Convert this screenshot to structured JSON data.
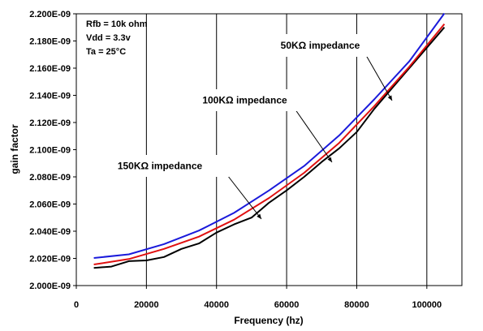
{
  "chart_data": {
    "type": "line",
    "xlabel": "Frequency (hz)",
    "ylabel": "gain factor",
    "xlim": [
      0,
      110000
    ],
    "ylim": [
      2e-09,
      2.2e-09
    ],
    "x_ticks": [
      "0",
      "20000",
      "40000",
      "60000",
      "80000",
      "100000"
    ],
    "y_ticks": [
      "2.000E-09",
      "2.020E-09",
      "2.040E-09",
      "2.060E-09",
      "2.080E-09",
      "2.100E-09",
      "2.120E-09",
      "2.140E-09",
      "2.160E-09",
      "2.180E-09",
      "2.200E-09"
    ],
    "grid": "vertical",
    "conditions": [
      "Rfb = 10k ohm",
      "Vdd = 3.3v",
      "Ta = 25°C"
    ],
    "series": [
      {
        "name": "50KΩ impedance",
        "color": "#1a1adb",
        "x": [
          5000,
          15000,
          25000,
          35000,
          45000,
          55000,
          65000,
          75000,
          85000,
          95000,
          105000
        ],
        "y": [
          2.0203e-09,
          2.023e-09,
          2.0305e-09,
          2.0405e-09,
          2.0535e-09,
          2.07e-09,
          2.088e-09,
          2.1105e-09,
          2.137e-09,
          2.165e-09,
          2.2003e-09
        ]
      },
      {
        "name": "100KΩ impedance",
        "color": "#e01010",
        "x": [
          5000,
          15000,
          25000,
          35000,
          45000,
          55000,
          65000,
          75000,
          85000,
          95000,
          105000
        ],
        "y": [
          2.0155e-09,
          2.0195e-09,
          2.027e-09,
          2.036e-09,
          2.0485e-09,
          2.0645e-09,
          2.083e-09,
          2.105e-09,
          2.132e-09,
          2.161e-09,
          2.1925e-09
        ]
      },
      {
        "name": "150KΩ impedance",
        "color": "#000000",
        "x": [
          5000,
          10000,
          15000,
          20000,
          25000,
          30000,
          35000,
          40000,
          45000,
          50000,
          55000,
          60000,
          65000,
          70000,
          75000,
          80000,
          85000,
          90000,
          95000,
          100000,
          105000
        ],
        "y": [
          2.013e-09,
          2.014e-09,
          2.018e-09,
          2.0185e-09,
          2.021e-09,
          2.027e-09,
          2.031e-09,
          2.039e-09,
          2.045e-09,
          2.05e-09,
          2.061e-09,
          2.07e-09,
          2.08e-09,
          2.091e-09,
          2.101e-09,
          2.113e-09,
          2.13e-09,
          2.145e-09,
          2.16e-09,
          2.175e-09,
          2.19e-09
        ]
      }
    ]
  }
}
